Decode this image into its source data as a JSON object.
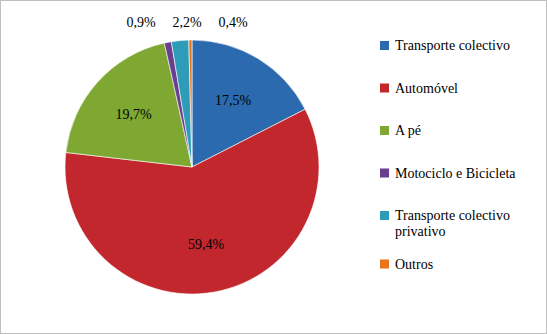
{
  "chart_data": {
    "type": "pie",
    "categories": [
      "Transporte colectivo",
      "Automóvel",
      "A pé",
      "Motociclo e Bicicleta",
      "Transporte colectivo privativo",
      "Outros"
    ],
    "values": [
      17.5,
      59.4,
      19.7,
      0.9,
      2.2,
      0.4
    ],
    "value_labels": [
      "17,5%",
      "59,4%",
      "19,7%",
      "0,9%",
      "2,2%",
      "0,4%"
    ],
    "colors": [
      "#2B6AAE",
      "#C1272D",
      "#7EA832",
      "#6A3F8F",
      "#2E9CB8",
      "#E8741D"
    ],
    "data_labels": true,
    "legend": "right"
  }
}
